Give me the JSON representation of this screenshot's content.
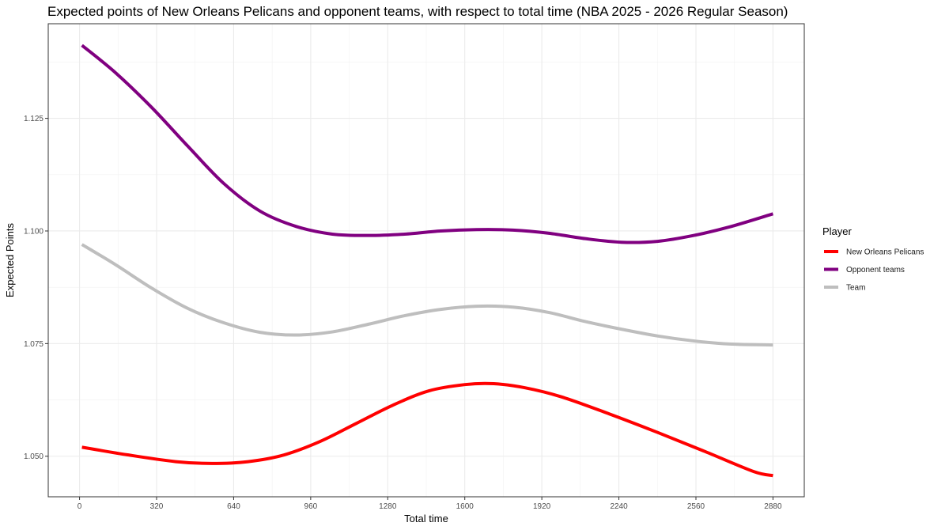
{
  "chart_data": {
    "type": "line",
    "title": "Expected points of New Orleans Pelicans and opponent teams, with respect to total time (NBA 2025 - 2026 Regular Season)",
    "xlabel": "Total time",
    "ylabel": "Expected Points",
    "xlim": [
      -130,
      3010
    ],
    "ylim": [
      1.041,
      1.146
    ],
    "x_ticks": [
      0,
      320,
      640,
      960,
      1280,
      1600,
      1920,
      2240,
      2560,
      2880
    ],
    "x_tick_labels": [
      "0",
      "320",
      "640",
      "960",
      "1280",
      "1600",
      "1920",
      "2240",
      "2560",
      "2880"
    ],
    "y_ticks": [
      1.05,
      1.075,
      1.1,
      1.125
    ],
    "y_tick_labels": [
      "1.050",
      "1.075",
      "1.100",
      "1.125"
    ],
    "grid": true,
    "legend": {
      "title": "Player",
      "position": "right"
    },
    "series": [
      {
        "name": "New Orleans Pelicans",
        "color": "#ff0000",
        "x": [
          10,
          200,
          400,
          550,
          700,
          850,
          1000,
          1150,
          1300,
          1450,
          1600,
          1720,
          1850,
          2000,
          2200,
          2400,
          2600,
          2800,
          2880
        ],
        "y": [
          1.052,
          1.0503,
          1.0488,
          1.0484,
          1.0488,
          1.0503,
          1.0533,
          1.0573,
          1.0613,
          1.0645,
          1.0659,
          1.0661,
          1.0652,
          1.0632,
          1.0594,
          1.0553,
          1.051,
          1.0466,
          1.0457
        ]
      },
      {
        "name": "Opponent teams",
        "color": "#800080",
        "x": [
          10,
          150,
          300,
          450,
          600,
          750,
          900,
          1050,
          1200,
          1350,
          1500,
          1650,
          1800,
          1950,
          2100,
          2250,
          2400,
          2550,
          2700,
          2880
        ],
        "y": [
          1.1412,
          1.1351,
          1.1274,
          1.1188,
          1.1105,
          1.1044,
          1.101,
          1.0993,
          1.099,
          1.0993,
          1.1,
          1.1003,
          1.1002,
          1.0995,
          1.0983,
          1.0975,
          1.0977,
          1.099,
          1.1009,
          1.1038
        ]
      },
      {
        "name": "Team",
        "color": "#bebebe",
        "x": [
          10,
          150,
          300,
          450,
          600,
          750,
          900,
          1050,
          1200,
          1350,
          1500,
          1650,
          1800,
          1950,
          2100,
          2250,
          2400,
          2550,
          2700,
          2880
        ],
        "y": [
          1.097,
          1.0925,
          1.0873,
          1.0828,
          1.0796,
          1.0775,
          1.0769,
          1.0776,
          1.0793,
          1.0812,
          1.0826,
          1.0833,
          1.0831,
          1.0819,
          1.0799,
          1.0782,
          1.0767,
          1.0756,
          1.0749,
          1.0747
        ]
      }
    ]
  }
}
